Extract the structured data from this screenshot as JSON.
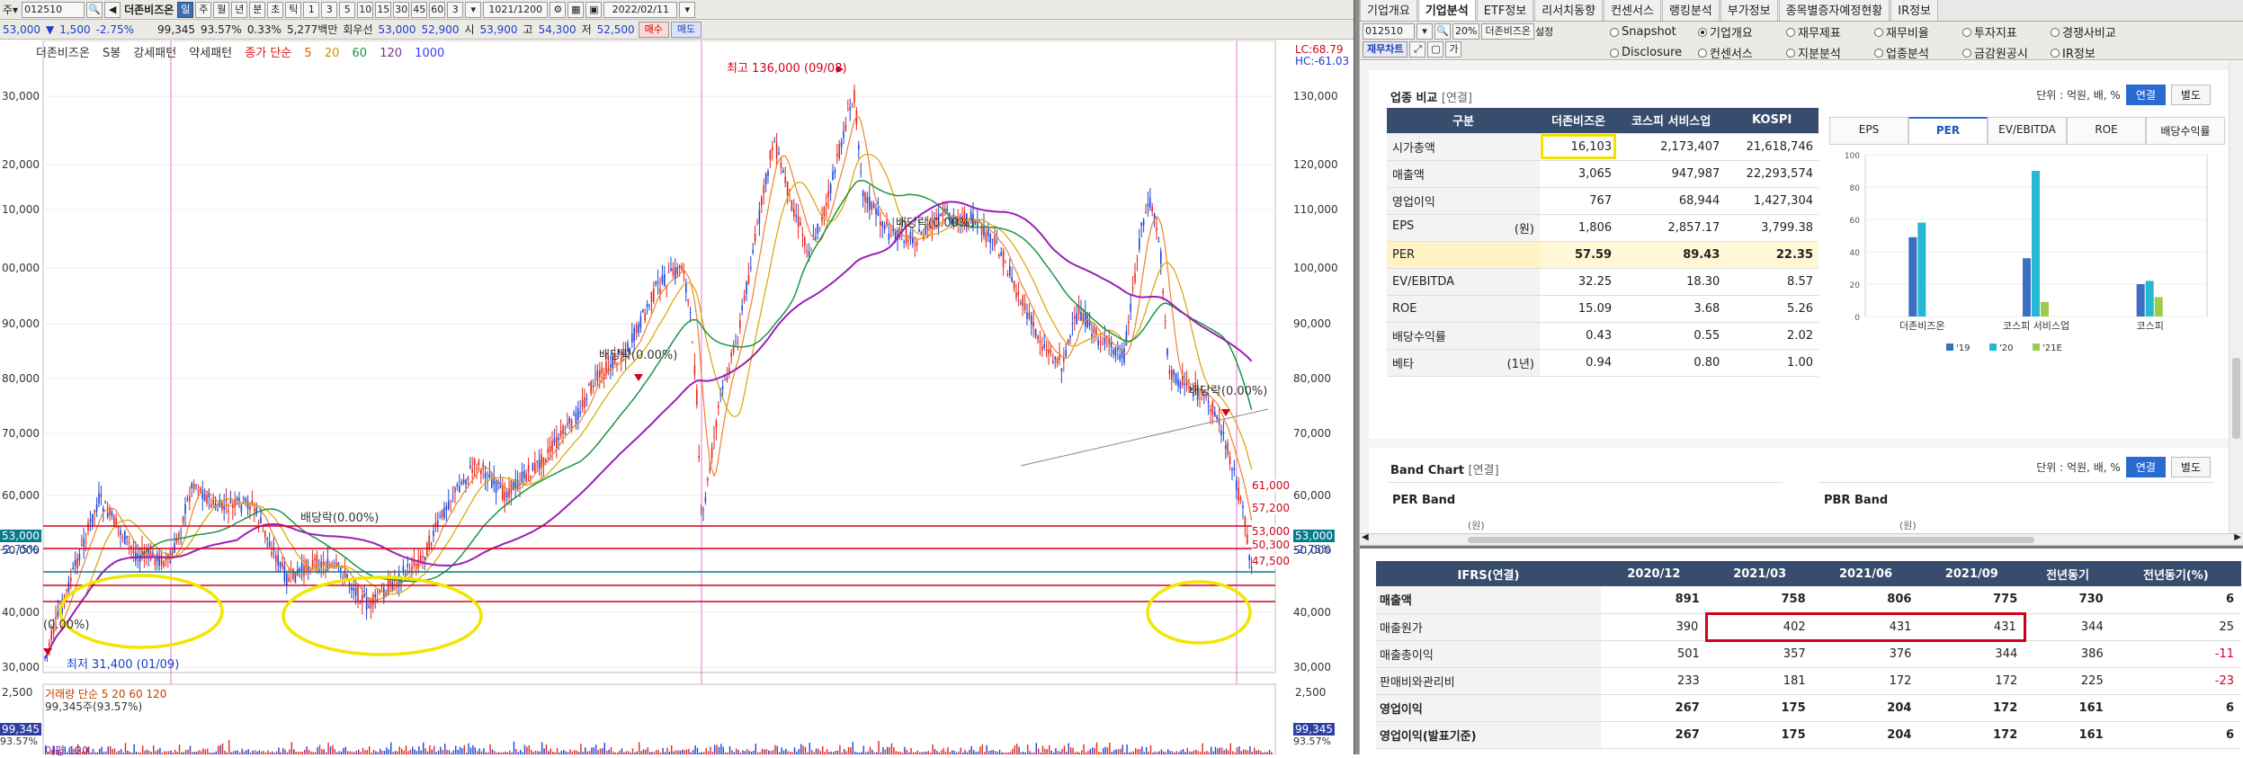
{
  "toolbar1": {
    "code": "012510",
    "name": "더존비즈온",
    "period_buttons": [
      "일",
      "주",
      "월",
      "년",
      "분",
      "초",
      "틱"
    ],
    "interval_buttons": [
      "1",
      "3",
      "5",
      "10",
      "15",
      "30",
      "45",
      "60",
      "3"
    ],
    "count": "1021/1200",
    "date": "2022/02/11"
  },
  "toolbar2": {
    "price": "53,000",
    "change": "1,500",
    "change_pct": "-2.75%",
    "volume": "99,345",
    "vol_ratio": "93.57%",
    "turnover": "0.33%",
    "amount": "5,277백만",
    "bal_label": "회우선",
    "bal_value": "53,000",
    "v2": "52,900",
    "open_label": "시",
    "open": "53,900",
    "high_label": "고",
    "high": "54,300",
    "low_label": "저",
    "low": "52,500",
    "buy": "매수",
    "sell": "매도"
  },
  "chart": {
    "legend_name": "더존비즈온",
    "legend_s": "S봉",
    "legend_pattern1": "강세패턴",
    "legend_pattern2": "약세패턴",
    "legend_ma": "종가 단순",
    "ma_periods": [
      "5",
      "20",
      "60",
      "120",
      "1000"
    ],
    "ma_colors": [
      "#d7191c",
      "#e0a000",
      "#1a9641",
      "#7b3294",
      "#3c3cff"
    ],
    "lc": "LC:68.79",
    "hc": "HC:-61.03",
    "high_marker": "최고 136,000 (09/08)",
    "low_marker": "최저 31,400 (01/09)",
    "dividend_labels": [
      "배당락(0.00%)",
      "배당락(0.00%)",
      "배당락(0.00%)",
      "배당락(0.00%)",
      "(0.00%)"
    ],
    "left_axis": [
      "30,000",
      "20,000",
      "10,000",
      "00,000",
      "90,000",
      "80,000",
      "70,000",
      "60,000",
      "50,000",
      "40,000",
      "30,000"
    ],
    "right_axis": [
      "130,000",
      "120,000",
      "110,000",
      "100,000",
      "90,000",
      "80,000",
      "70,000",
      "60,000",
      "50,000",
      "40,000",
      "30,000"
    ],
    "levels": [
      "61,000",
      "57,200",
      "53,000",
      "50,300",
      "47,500"
    ],
    "cur_left": "53,000",
    "cur_left_pct": "-2.75%",
    "cur_right": "53,000",
    "cur_right_pct": "-2.75%",
    "vol_legend": "거래량 단순 5 20 60 120",
    "vol_amount": "99,345주(93.57%)",
    "vol_left_axis": "2,500",
    "vol_right_axis": "2,500",
    "vol_left_val": "99,345",
    "vol_left_pct": "93.57%",
    "vol_right_val": "99,345",
    "vol_right_pct": "93.57%",
    "bottom_legend": "이평 120"
  },
  "right": {
    "top_tabs": [
      "기업개요",
      "기업분석",
      "ETF정보",
      "리서치동향",
      "컨센서스",
      "랭킹분석",
      "부가정보",
      "종목별증자예정현황",
      "IR정보"
    ],
    "code": "012510",
    "type": "20%",
    "name": "더존비즈온",
    "setting": "설정",
    "fin_chart_btn": "재무차트",
    "radios_row1": [
      "Snapshot",
      "기업개요",
      "재무제표",
      "재무비율",
      "투자지표",
      "경쟁사비교"
    ],
    "radios_row2": [
      "Disclosure",
      "컨센서스",
      "지분분석",
      "업종분석",
      "금감원공시",
      "IR정보"
    ],
    "selected_radio": "기업개요",
    "compare": {
      "title": "업종 비교",
      "tag": "[연결]",
      "unit": "단위 : 억원, 배, %",
      "unit_btns": [
        "연결",
        "별도"
      ],
      "headers": [
        "구분",
        "더존비즈온",
        "코스피 서비스업",
        "KOSPI"
      ],
      "rows": [
        {
          "label": "시가총액",
          "sub": "",
          "v": [
            "16,103",
            "2,173,407",
            "21,618,746"
          ]
        },
        {
          "label": "매출액",
          "sub": "",
          "v": [
            "3,065",
            "947,987",
            "22,293,574"
          ]
        },
        {
          "label": "영업이익",
          "sub": "",
          "v": [
            "767",
            "68,944",
            "1,427,304"
          ]
        },
        {
          "label": "EPS",
          "sub": "(원)",
          "v": [
            "1,806",
            "2,857.17",
            "3,799.38"
          ]
        },
        {
          "label": "PER",
          "sub": "",
          "v": [
            "57.59",
            "89.43",
            "22.35"
          ]
        },
        {
          "label": "EV/EBITDA",
          "sub": "",
          "v": [
            "32.25",
            "18.30",
            "8.57"
          ]
        },
        {
          "label": "ROE",
          "sub": "",
          "v": [
            "15.09",
            "3.68",
            "5.26"
          ]
        },
        {
          "label": "배당수익률",
          "sub": "",
          "v": [
            "0.43",
            "0.55",
            "2.02"
          ]
        },
        {
          "label": "베타",
          "sub": "(1년)",
          "v": [
            "0.94",
            "0.80",
            "1.00"
          ]
        }
      ],
      "chart_tabs": [
        "EPS",
        "PER",
        "EV/EBITDA",
        "ROE",
        "배당수익률"
      ],
      "selected_tab": "PER"
    },
    "chart_data": {
      "type": "bar",
      "categories": [
        "더존비즈온",
        "코스피 서비스업",
        "코스피"
      ],
      "series": [
        {
          "name": "'19",
          "values": [
            49,
            36,
            20
          ],
          "color": "#3a6fc4"
        },
        {
          "name": "'20",
          "values": [
            58,
            90,
            22
          ],
          "color": "#25b7d3"
        },
        {
          "name": "'21E",
          "values": [
            0,
            9,
            12
          ],
          "color": "#9ccc4a"
        }
      ],
      "ylim": [
        0,
        100
      ],
      "yticks": [
        "0",
        "20",
        "40",
        "60",
        "80",
        "100"
      ]
    },
    "band": {
      "title": "Band Chart",
      "tag": "[연결]",
      "unit": "단위 : 억원, 배, %",
      "per_band": "PER Band",
      "pbr_band": "PBR Band",
      "axis_unit": "(원)"
    },
    "fin": {
      "headers": [
        "IFRS(연결)",
        "2020/12",
        "2021/03",
        "2021/06",
        "2021/09",
        "전년동기",
        "전년동기(%)"
      ],
      "rows": [
        {
          "label": "매출액",
          "bold": true,
          "v": [
            "891",
            "758",
            "806",
            "775",
            "730",
            "6"
          ]
        },
        {
          "label": "매출원가",
          "bold": false,
          "v": [
            "390",
            "402",
            "431",
            "431",
            "344",
            "25"
          ]
        },
        {
          "label": "매출총이익",
          "bold": false,
          "v": [
            "501",
            "357",
            "376",
            "344",
            "386",
            "-11"
          ]
        },
        {
          "label": "판매비와관리비",
          "bold": false,
          "v": [
            "233",
            "181",
            "172",
            "172",
            "225",
            "-23"
          ]
        },
        {
          "label": "영업이익",
          "bold": true,
          "v": [
            "267",
            "175",
            "204",
            "172",
            "161",
            "6"
          ]
        },
        {
          "label": "영업이익(발표기준)",
          "bold": true,
          "v": [
            "267",
            "175",
            "204",
            "172",
            "161",
            "6"
          ]
        }
      ]
    }
  }
}
